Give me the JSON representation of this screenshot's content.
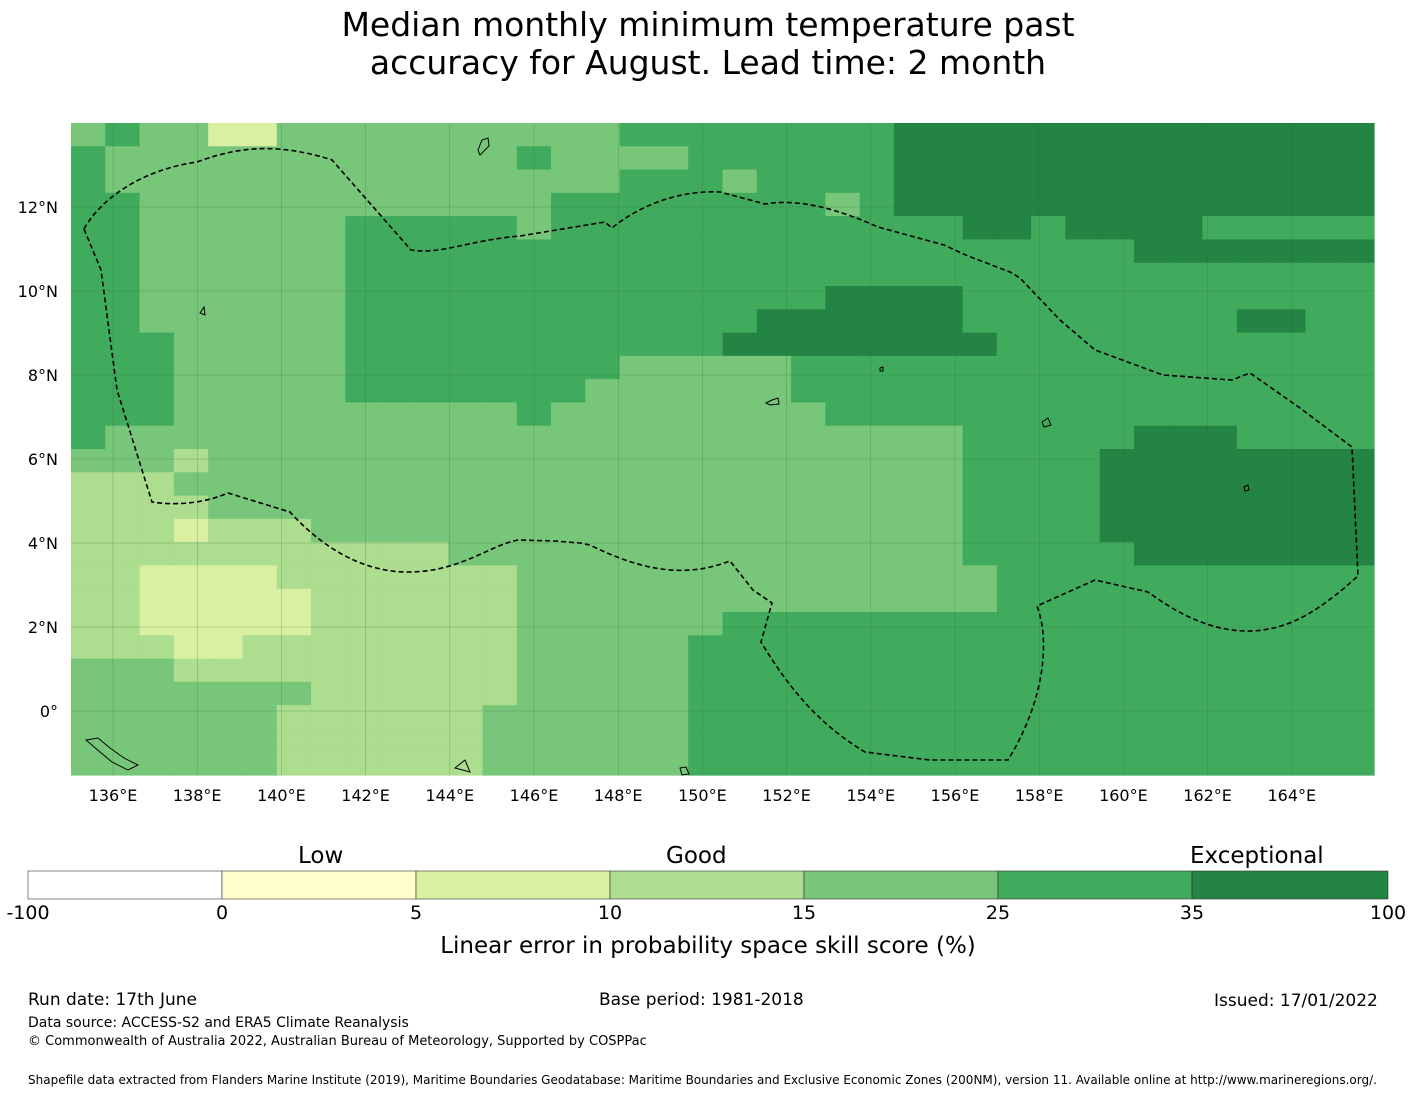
{
  "title_line1": "Median monthly minimum temperature past",
  "title_line2": "accuracy for August. Lead time: 2 month",
  "map": {
    "lon_ticks": [
      "136°E",
      "138°E",
      "140°E",
      "142°E",
      "144°E",
      "146°E",
      "148°E",
      "150°E",
      "152°E",
      "154°E",
      "156°E",
      "158°E",
      "160°E",
      "162°E",
      "164°E"
    ],
    "lat_ticks": [
      "12°N",
      "10°N",
      "8°N",
      "6°N",
      "4°N",
      "2°N",
      "0°"
    ],
    "grid": [
      "45442244444444445555555566666666666666",
      "54444444444445444455555566666666666666",
      "54444444444444445554555566666666666666",
      "55444444444444555555554566666666666666",
      "55444444555554555555555555665666655555",
      "55444444555555555555555555555556666666",
      "55444444555555555555555555555555555555",
      "55444444555555555555556666555555555555",
      "55444444555555555555666666555555556655",
      "55544444555555555556666666655555555555",
      "55544444555555554444455555555555555555",
      "55544444555555544444455555555555555555",
      "55544444444445444444445555555555555555",
      "54444444444444444444444444555556665555",
      "44434444444444444444444444555566666666",
      "33344444444444444444444444555566666666",
      "33334444444444444444444444555566666666",
      "33323334444444444444444444555566666666",
      "33333333333444444444444444555556666666",
      "33222233333334444444444444455555555555",
      "33222223333334444444444444455555555555",
      "33222223333334444445555555555555555555",
      "33322333333334444455555555555555555555",
      "44433333333334444455555555555555555555",
      "44444443333334444455555555555555555555",
      "44444433333344444455555555555555555555",
      "44444433333344444455555555555555555555",
      "44444433333344444455555555555555555555"
    ],
    "level_colors": [
      "#ffffff",
      "#ffffcc",
      "#d9f0a3",
      "#addd8e",
      "#78c679",
      "#41ab5d",
      "#238443"
    ]
  },
  "colorbar": {
    "categories": [
      "Low",
      "Good",
      "Exceptional"
    ],
    "ticks": [
      "-100",
      "0",
      "5",
      "10",
      "15",
      "25",
      "35",
      "100"
    ],
    "colors": [
      "#ffffff",
      "#ffffcc",
      "#d9f0a3",
      "#addd8e",
      "#78c679",
      "#41ab5d",
      "#238443"
    ],
    "title": "Linear error in probability space skill score (%)"
  },
  "footer": {
    "run_date": "Run date: 17th June",
    "base_period": "Base period: 1981-2018",
    "issued": "Issued: 17/01/2022",
    "data_source": "Data source: ACCESS-S2 and ERA5 Climate Reanalysis",
    "copyright": "© Commonwealth of Australia 2022, Australian Bureau of Meteorology, Supported by COSPPac",
    "shapefile": "Shapefile data extracted from Flanders Marine Institute (2019), Maritime Boundaries Geodatabase: Maritime Boundaries and Exclusive Economic Zones (200NM), version 11. Available online at http://www.marineregions.org/."
  }
}
